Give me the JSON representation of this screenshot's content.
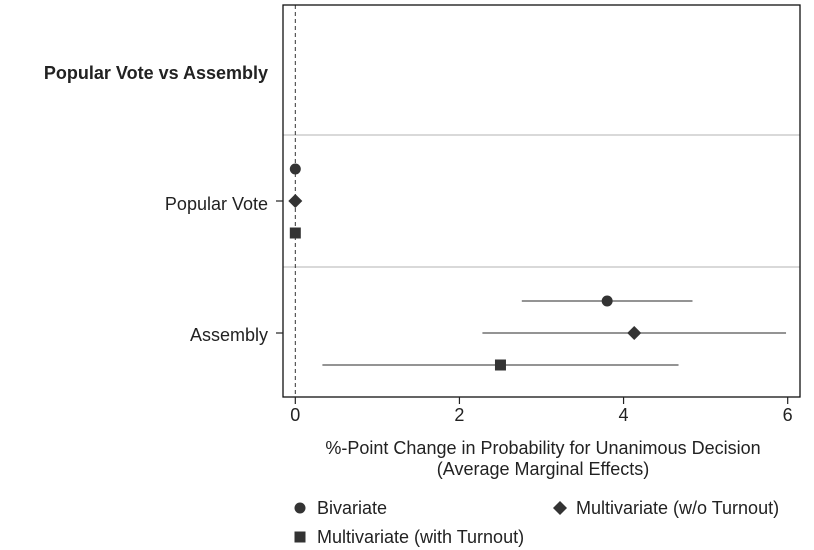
{
  "chart_data": {
    "type": "scatter",
    "subtype": "coefficient-plot",
    "group_header": "Popular Vote vs Assembly",
    "categories": [
      "Popular Vote",
      "Assembly"
    ],
    "xlabel_line1": "%-Point Change in Probability for Unanimous Decision",
    "xlabel_line2": "(Average Marginal Effects)",
    "xlim": [
      -0.15,
      6.15
    ],
    "xticks": [
      0,
      2,
      4,
      6
    ],
    "xtick_labels": [
      "0",
      "2",
      "4",
      "6"
    ],
    "reference_line": 0,
    "legend_position": "bottom",
    "series": [
      {
        "name": "Bivariate",
        "marker": "circle",
        "points": [
          {
            "category": "Popular Vote",
            "value": 0,
            "lo": 0,
            "hi": 0
          },
          {
            "category": "Assembly",
            "value": 3.8,
            "lo": 2.76,
            "hi": 4.84
          }
        ]
      },
      {
        "name": "Multivariate (w/o Turnout)",
        "marker": "diamond",
        "points": [
          {
            "category": "Popular Vote",
            "value": 0,
            "lo": 0,
            "hi": 0
          },
          {
            "category": "Assembly",
            "value": 4.13,
            "lo": 2.28,
            "hi": 5.98
          }
        ]
      },
      {
        "name": "Multivariate (with Turnout)",
        "marker": "square",
        "points": [
          {
            "category": "Popular Vote",
            "value": 0,
            "lo": 0,
            "hi": 0
          },
          {
            "category": "Assembly",
            "value": 2.5,
            "lo": 0.33,
            "hi": 4.67
          }
        ]
      }
    ],
    "colors": {
      "marker": "#333333",
      "ci": "#555555",
      "frame": "#111111",
      "divider": "#d9d9d9"
    }
  }
}
